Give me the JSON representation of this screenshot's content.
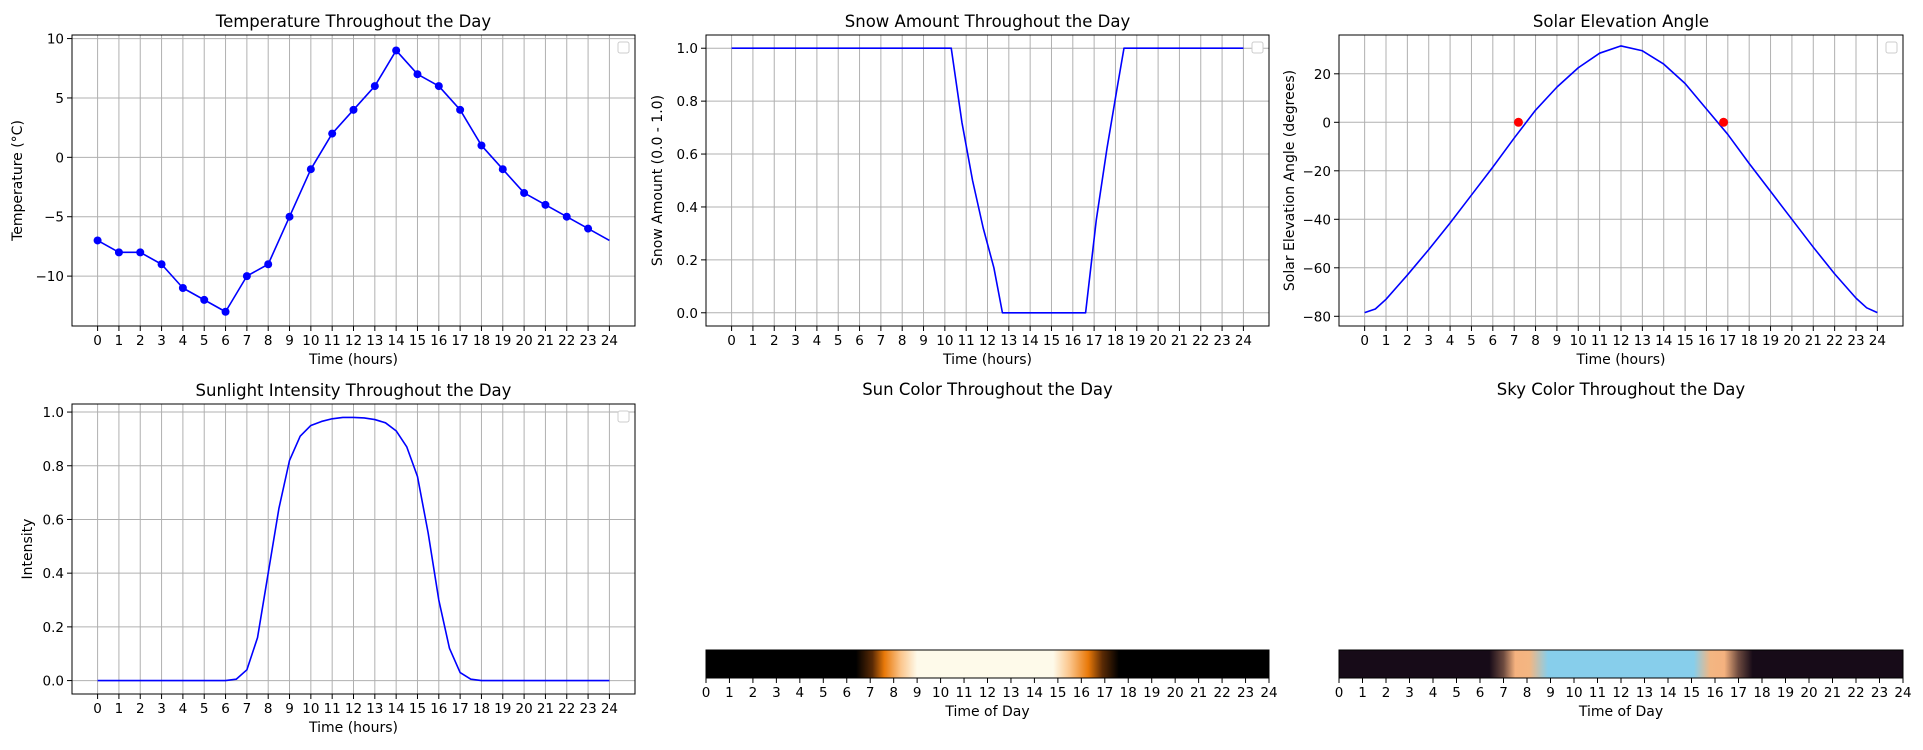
{
  "chart_data": [
    {
      "type": "line",
      "title": "Temperature Throughout the Day",
      "xlabel": "Time (hours)",
      "ylabel": "Temperature (°C)",
      "xlim": [
        -1.2,
        25.2
      ],
      "ylim": [
        -14.2,
        10.3
      ],
      "xticks": [
        0,
        1,
        2,
        3,
        4,
        5,
        6,
        7,
        8,
        9,
        10,
        11,
        12,
        13,
        14,
        15,
        16,
        17,
        18,
        19,
        20,
        21,
        22,
        23,
        24
      ],
      "yticks": [
        -10,
        -5,
        0,
        5,
        10
      ],
      "ytick_labels": [
        "−10",
        "−5",
        "0",
        "5",
        "10"
      ],
      "grid": true,
      "legend": "top-right (empty)",
      "series": [
        {
          "color": "#0000ff",
          "markers": true,
          "x": [
            0,
            1,
            2,
            3,
            4,
            5,
            6,
            7,
            8,
            9,
            10,
            11,
            12,
            13,
            14,
            15,
            16,
            17,
            18,
            19,
            20,
            21,
            22,
            23
          ],
          "values": [
            -7,
            -8,
            -8,
            -9,
            -11,
            -12,
            -13,
            -10,
            -9,
            -5,
            -1,
            2,
            4,
            6,
            9,
            7,
            6,
            4,
            1,
            -1,
            -3,
            -4,
            -5,
            -6
          ]
        },
        {
          "color": "#0000ff",
          "markers": false,
          "x": [
            23,
            24
          ],
          "values": [
            -6,
            -7
          ]
        }
      ]
    },
    {
      "type": "line",
      "title": "Snow Amount Throughout the Day",
      "xlabel": "Time (hours)",
      "ylabel": "Snow Amount (0.0 - 1.0)",
      "xlim": [
        -1.2,
        25.2
      ],
      "ylim": [
        -0.05,
        1.05
      ],
      "xticks": [
        0,
        1,
        2,
        3,
        4,
        5,
        6,
        7,
        8,
        9,
        10,
        11,
        12,
        13,
        14,
        15,
        16,
        17,
        18,
        19,
        20,
        21,
        22,
        23,
        24
      ],
      "yticks": [
        0.0,
        0.2,
        0.4,
        0.6,
        0.8,
        1.0
      ],
      "ytick_labels": [
        "0.0",
        "0.2",
        "0.4",
        "0.6",
        "0.8",
        "1.0"
      ],
      "grid": true,
      "legend": "top-right (empty)",
      "series": [
        {
          "color": "#0000ff",
          "x": [
            0,
            10.3,
            10.8,
            11.3,
            11.8,
            12.3,
            12.7,
            16.6,
            17.1,
            17.6,
            18.1,
            18.4,
            24
          ],
          "values": [
            1.0,
            1.0,
            0.72,
            0.5,
            0.32,
            0.17,
            0.0,
            0.0,
            0.35,
            0.62,
            0.86,
            1.0,
            1.0
          ]
        }
      ]
    },
    {
      "type": "line",
      "title": "Solar Elevation Angle",
      "xlabel": "Time (hours)",
      "ylabel": "Solar Elevation Angle (degrees)",
      "xlim": [
        -1.2,
        25.2
      ],
      "ylim": [
        -84,
        36
      ],
      "xticks": [
        0,
        1,
        2,
        3,
        4,
        5,
        6,
        7,
        8,
        9,
        10,
        11,
        12,
        13,
        14,
        15,
        16,
        17,
        18,
        19,
        20,
        21,
        22,
        23,
        24
      ],
      "yticks": [
        -80,
        -60,
        -40,
        -20,
        0,
        20
      ],
      "ytick_labels": [
        "−80",
        "−60",
        "−40",
        "−20",
        "0",
        "20"
      ],
      "grid": true,
      "legend": "top-right (empty)",
      "series": [
        {
          "color": "#0000ff",
          "x": [
            0,
            0.5,
            1,
            2,
            3,
            4,
            5,
            6,
            7,
            8,
            9,
            10,
            11,
            12,
            13,
            14,
            15,
            16,
            17,
            18,
            19,
            20,
            21,
            22,
            23,
            23.5,
            24
          ],
          "values": [
            -78.5,
            -77,
            -73,
            -63,
            -52.5,
            -41.5,
            -30,
            -18.5,
            -6.5,
            5,
            14.5,
            22.5,
            28.5,
            31.5,
            29.5,
            24,
            16,
            5.5,
            -5,
            -17,
            -28.5,
            -40,
            -51.5,
            -62.5,
            -72.5,
            -76.5,
            -78.5
          ]
        }
      ],
      "points": {
        "color": "#ff0000",
        "x": [
          7.2,
          16.8
        ],
        "values": [
          0,
          0
        ]
      }
    },
    {
      "type": "line",
      "title": "Sunlight Intensity Throughout the Day",
      "xlabel": "Time (hours)",
      "ylabel": "Intensity",
      "xlim": [
        -1.2,
        25.2
      ],
      "ylim": [
        -0.05,
        1.03
      ],
      "xticks": [
        0,
        1,
        2,
        3,
        4,
        5,
        6,
        7,
        8,
        9,
        10,
        11,
        12,
        13,
        14,
        15,
        16,
        17,
        18,
        19,
        20,
        21,
        22,
        23,
        24
      ],
      "yticks": [
        0.0,
        0.2,
        0.4,
        0.6,
        0.8,
        1.0
      ],
      "ytick_labels": [
        "0.0",
        "0.2",
        "0.4",
        "0.6",
        "0.8",
        "1.0"
      ],
      "grid": true,
      "legend": "top-right (empty)",
      "series": [
        {
          "color": "#0000ff",
          "x": [
            0,
            6,
            6.5,
            7,
            7.5,
            8,
            8.5,
            9,
            9.5,
            10,
            10.5,
            11,
            11.5,
            12,
            12.5,
            13,
            13.5,
            14,
            14.5,
            15,
            15.5,
            16,
            16.5,
            17,
            17.5,
            18,
            24
          ],
          "values": [
            0,
            0,
            0.005,
            0.04,
            0.16,
            0.4,
            0.64,
            0.82,
            0.91,
            0.95,
            0.965,
            0.975,
            0.98,
            0.98,
            0.978,
            0.972,
            0.96,
            0.93,
            0.87,
            0.76,
            0.55,
            0.3,
            0.12,
            0.03,
            0.005,
            0,
            0
          ]
        }
      ]
    },
    {
      "type": "heatmap",
      "title": "Sun Color Throughout the Day",
      "xlabel": "Time of Day",
      "xlim": [
        0,
        24
      ],
      "xticks": [
        0,
        1,
        2,
        3,
        4,
        5,
        6,
        7,
        8,
        9,
        10,
        11,
        12,
        13,
        14,
        15,
        16,
        17,
        18,
        19,
        20,
        21,
        22,
        23,
        24
      ],
      "stops": [
        {
          "t": 0,
          "color": "#000000"
        },
        {
          "t": 6.4,
          "color": "#000000"
        },
        {
          "t": 7.1,
          "color": "#5a2a05"
        },
        {
          "t": 7.6,
          "color": "#e87808"
        },
        {
          "t": 8.3,
          "color": "#fbc58b"
        },
        {
          "t": 9.0,
          "color": "#fefaea"
        },
        {
          "t": 14.8,
          "color": "#fefaea"
        },
        {
          "t": 15.5,
          "color": "#fbc58b"
        },
        {
          "t": 16.3,
          "color": "#e87808"
        },
        {
          "t": 16.9,
          "color": "#5a2a05"
        },
        {
          "t": 17.6,
          "color": "#000000"
        },
        {
          "t": 24,
          "color": "#000000"
        }
      ]
    },
    {
      "type": "heatmap",
      "title": "Sky Color Throughout the Day",
      "xlabel": "Time of Day",
      "xlim": [
        0,
        24
      ],
      "xticks": [
        0,
        1,
        2,
        3,
        4,
        5,
        6,
        7,
        8,
        9,
        10,
        11,
        12,
        13,
        14,
        15,
        16,
        17,
        18,
        19,
        20,
        21,
        22,
        23,
        24
      ],
      "stops": [
        {
          "t": 0,
          "color": "#170b18"
        },
        {
          "t": 6.4,
          "color": "#170b18"
        },
        {
          "t": 7.0,
          "color": "#6d4a3f"
        },
        {
          "t": 7.5,
          "color": "#f5b27f"
        },
        {
          "t": 8.1,
          "color": "#f3b682"
        },
        {
          "t": 8.9,
          "color": "#87ceeb"
        },
        {
          "t": 15.1,
          "color": "#87ceeb"
        },
        {
          "t": 15.8,
          "color": "#f3b682"
        },
        {
          "t": 16.4,
          "color": "#f5b27f"
        },
        {
          "t": 17.0,
          "color": "#6d4a3f"
        },
        {
          "t": 17.6,
          "color": "#170b18"
        },
        {
          "t": 24,
          "color": "#170b18"
        }
      ]
    }
  ]
}
